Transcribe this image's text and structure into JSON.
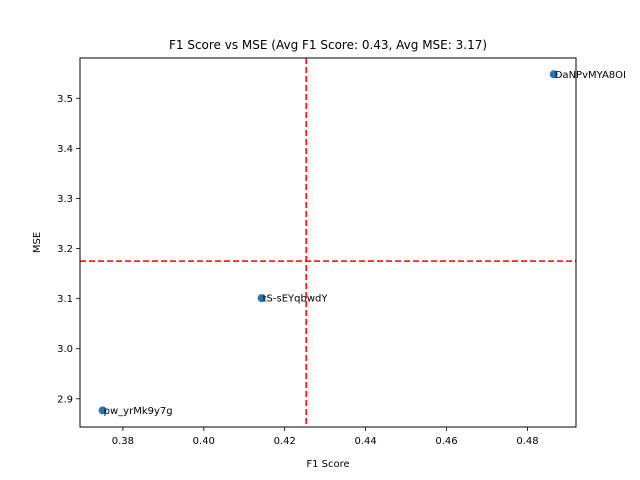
{
  "chart_data": {
    "type": "scatter",
    "title": "F1 Score vs MSE (Avg F1 Score: 0.43, Avg MSE: 3.17)",
    "xlabel": "F1 Score",
    "ylabel": "MSE",
    "xlim": [
      0.3694,
      0.492
    ],
    "ylim": [
      2.8437,
      3.5805
    ],
    "xticks": [
      "0.38",
      "0.40",
      "0.42",
      "0.44",
      "0.46",
      "0.48"
    ],
    "yticks": [
      "2.9",
      "3.0",
      "3.1",
      "3.2",
      "3.3",
      "3.4",
      "3.5"
    ],
    "points": [
      {
        "label": "DaNPvMYA8OI",
        "x": 0.4865,
        "y": 3.548
      },
      {
        "label": "tS-sEYqbwdY",
        "x": 0.4143,
        "y": 3.101
      },
      {
        "label": "pw_yrMk9y7g",
        "x": 0.375,
        "y": 2.877
      }
    ],
    "avg_lines": {
      "x": 0.4253,
      "y": 3.175
    },
    "point_color": "#1f77b4",
    "avg_line_color": "#ff0000",
    "grid": false
  }
}
